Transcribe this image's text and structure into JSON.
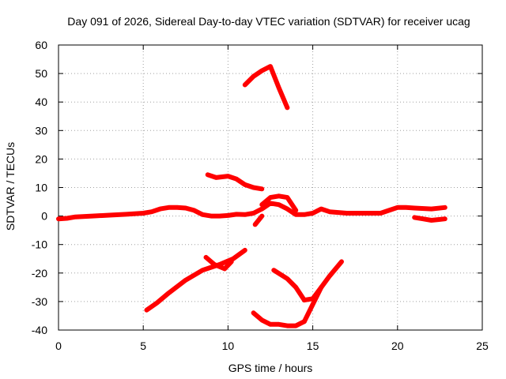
{
  "chart_data": {
    "type": "scatter",
    "title": "Day 091 of 2026, Sidereal Day-to-day VTEC variation (SDTVAR) for receiver ucag",
    "xlabel": "GPS time / hours",
    "ylabel": "SDTVAR / TECUs",
    "xlim": [
      0,
      25
    ],
    "ylim": [
      -40,
      60
    ],
    "xticks": [
      0,
      5,
      10,
      15,
      20,
      25
    ],
    "yticks": [
      -40,
      -30,
      -20,
      -10,
      0,
      10,
      20,
      30,
      40,
      50,
      60
    ],
    "grid": true,
    "series_color": "#ff0000",
    "series": [
      {
        "name": "main-trace",
        "x": [
          0,
          0.5,
          1,
          2,
          3,
          4,
          5,
          5.5,
          6,
          6.5,
          7,
          7.5,
          8,
          8.5,
          9,
          9.5,
          10,
          10.5,
          11,
          11.5,
          12,
          12.5,
          13,
          13.5,
          14,
          14.5,
          15,
          15.5,
          16,
          17,
          18,
          19,
          19.5,
          20,
          20.5,
          21,
          22,
          22.8
        ],
        "y": [
          -1,
          -0.8,
          -0.3,
          0,
          0.3,
          0.6,
          1,
          1.5,
          2.5,
          3,
          3,
          2.8,
          2,
          0.5,
          0,
          0,
          0.2,
          0.6,
          0.5,
          1,
          2.5,
          4.5,
          4,
          2.5,
          0.5,
          0.5,
          1,
          2.5,
          1.5,
          1,
          1,
          1,
          2,
          3,
          3,
          2.8,
          2.5,
          3
        ]
      },
      {
        "name": "bump-12-14",
        "x": [
          12,
          12.5,
          13,
          13.5,
          14
        ],
        "y": [
          4,
          6.5,
          7,
          6.5,
          2
        ]
      },
      {
        "name": "dip-12",
        "x": [
          11.6,
          12
        ],
        "y": [
          -3,
          0
        ]
      },
      {
        "name": "segment-21-22.8",
        "x": [
          21,
          21.5,
          22,
          22.5,
          22.8
        ],
        "y": [
          -0.5,
          -1,
          -1.5,
          -1.2,
          -1
        ]
      },
      {
        "name": "segment-9-12",
        "x": [
          8.8,
          9.3,
          10,
          10.5,
          11,
          11.5,
          12
        ],
        "y": [
          14.5,
          13.5,
          14,
          13,
          11,
          10,
          9.5
        ]
      },
      {
        "name": "segment-11-13.5",
        "x": [
          11,
          11.5,
          12,
          12.5,
          13,
          13.5
        ],
        "y": [
          46,
          49,
          51,
          52.5,
          45,
          38
        ]
      },
      {
        "name": "segment-5-11",
        "x": [
          5.2,
          5.8,
          6.5,
          7.5,
          8.5,
          9.5,
          10.3,
          11
        ],
        "y": [
          -33,
          -30.5,
          -27,
          -22.5,
          -19,
          -17,
          -15,
          -12
        ]
      },
      {
        "name": "segment-8.7-10",
        "x": [
          8.7,
          9.2,
          9.8,
          10.2
        ],
        "y": [
          -14.5,
          -17,
          -18.5,
          -16
        ]
      },
      {
        "name": "segment-11.5-14.5",
        "x": [
          11.5,
          12,
          12.5,
          13,
          13.5,
          14,
          14.5
        ],
        "y": [
          -34,
          -36.5,
          -38,
          -38,
          -38.5,
          -38.5,
          -37
        ]
      },
      {
        "name": "segment-12.7-16.7",
        "x": [
          12.7,
          13.5,
          14,
          14.5,
          15,
          15.5,
          16,
          16.7
        ],
        "y": [
          -19,
          -22,
          -25,
          -29.5,
          -29,
          -25,
          -21,
          -16
        ]
      },
      {
        "name": "segment-14.5-15.5",
        "x": [
          14.5,
          15,
          15.5
        ],
        "y": [
          -37,
          -31,
          -25
        ]
      }
    ]
  }
}
